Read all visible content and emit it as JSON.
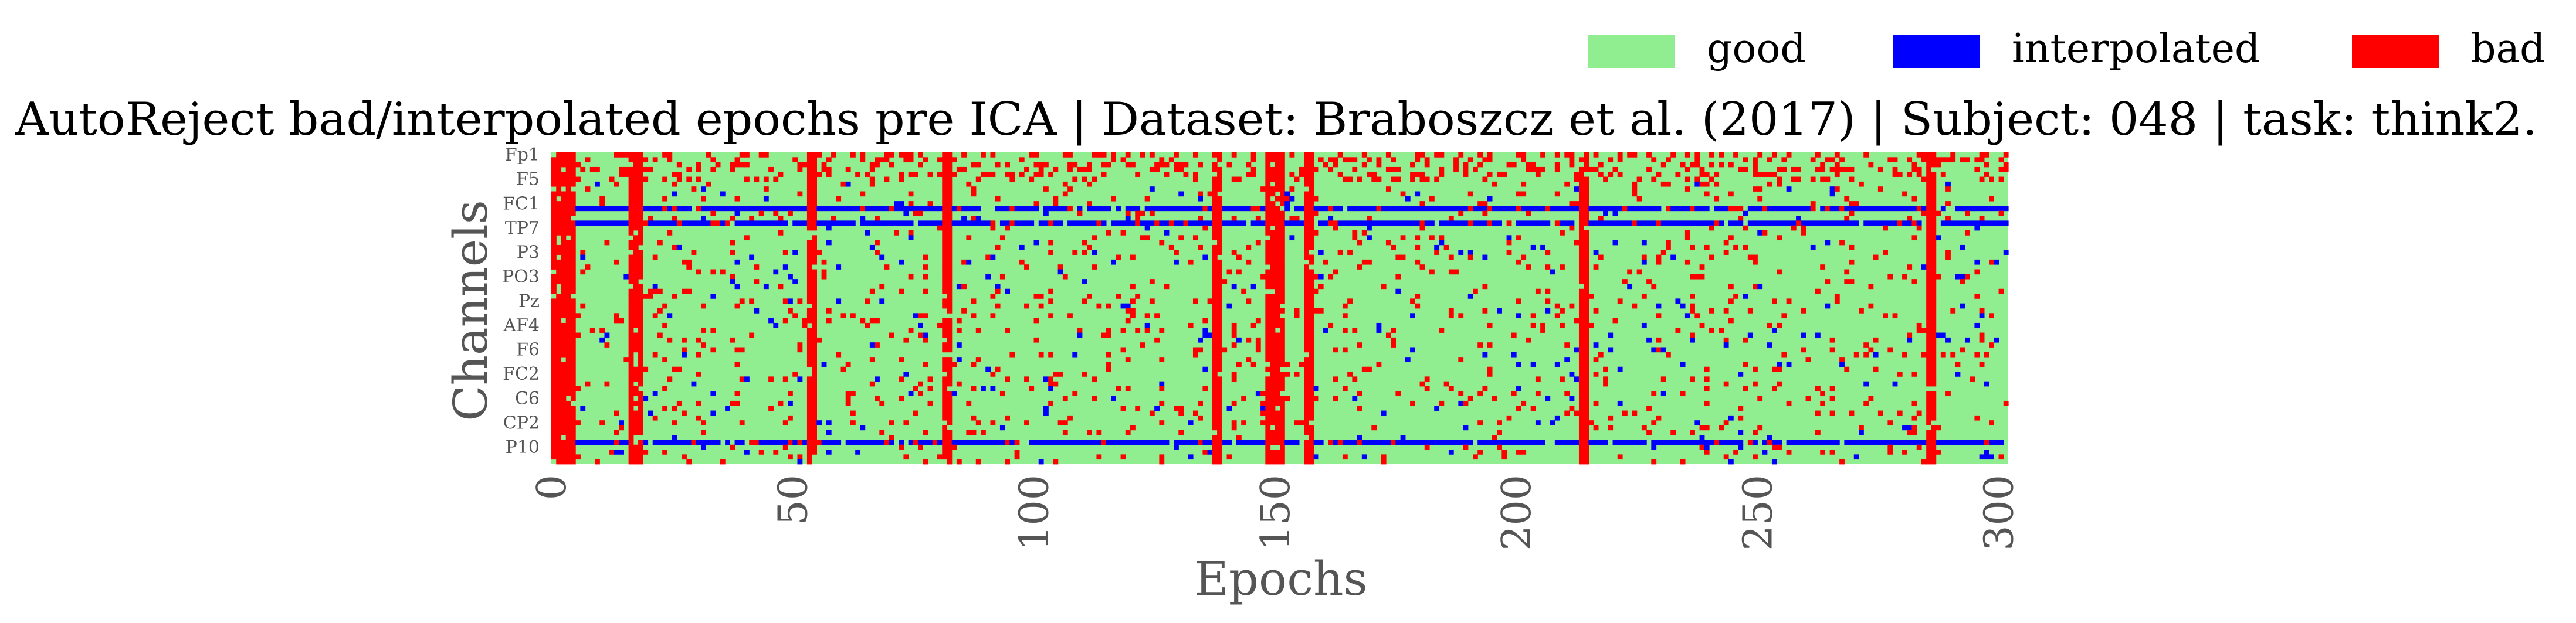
{
  "chart_data": {
    "type": "heatmap",
    "title": "AutoReject bad/interpolated epochs pre ICA | Dataset: Braboszcz et al. (2017) | Subject: 048 | task: think2.",
    "xlabel": "Epochs",
    "ylabel": "Channels",
    "n_epochs": 302,
    "n_channels": 64,
    "xlim": [
      0,
      302
    ],
    "x_ticks": [
      0,
      50,
      100,
      150,
      200,
      250,
      300
    ],
    "y_tick_labels": [
      "Fp1",
      "F5",
      "FC1",
      "TP7",
      "P3",
      "PO3",
      "Pz",
      "AF4",
      "F6",
      "FC2",
      "C6",
      "CP2",
      "P10"
    ],
    "y_tick_rows": [
      0,
      5,
      10,
      15,
      20,
      25,
      30,
      35,
      40,
      45,
      50,
      55,
      60
    ],
    "legend": {
      "placement": "top-right",
      "entries": [
        {
          "label": "good",
          "value": 0,
          "color": "#90ee90"
        },
        {
          "label": "interpolated",
          "value": 1,
          "color": "#0000ff"
        },
        {
          "label": "bad",
          "value": 2,
          "color": "#ff0000"
        }
      ]
    },
    "bad_epochs_all_channels": [
      0,
      1,
      2,
      3,
      4,
      16,
      17,
      18,
      53,
      54,
      81,
      82,
      137,
      138,
      148,
      149,
      150,
      151,
      156,
      157,
      213,
      214,
      285,
      286
    ],
    "interpolated_channel_rows": [
      11,
      14,
      59
    ],
    "background_state": "good",
    "grid": false
  }
}
